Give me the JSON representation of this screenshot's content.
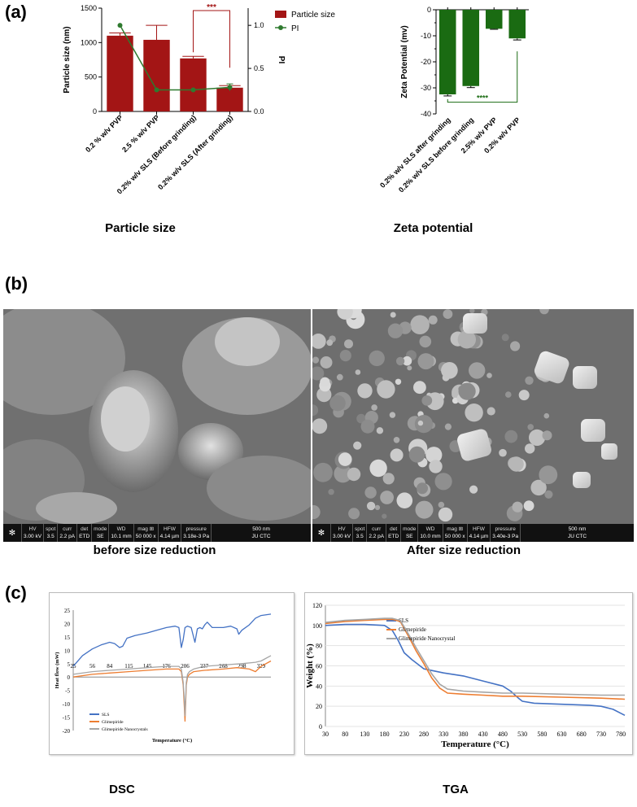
{
  "panels": {
    "a": "(a)",
    "b": "(b)",
    "c": "(c)"
  },
  "colors": {
    "particle_bar": "#a31515",
    "pi_line": "#2f7a2f",
    "zeta_bar": "#1a6b12",
    "sig_line": "#1a6b12",
    "sls": "#4472c4",
    "glimepiride": "#ed7d31",
    "nanocrystal": "#a5a5a5"
  },
  "captions": {
    "particle": "Particle size",
    "zeta": "Zeta potential",
    "sem_before": "before size reduction",
    "sem_after": "After size reduction",
    "dsc": "DSC",
    "tga": "TGA"
  },
  "sem": {
    "before": {
      "hv": "3.00 kV",
      "spot": "3.5",
      "curr": "2.2 pA",
      "det": "ETD",
      "mode": "SE",
      "wd": "10.1 mm",
      "mag": "50 000 x",
      "hfw": "4.14 µm",
      "pressure": "3.18e-3 Pa",
      "scale": "500 nm",
      "lab": "JU CTC"
    },
    "after": {
      "hv": "3.00 kV",
      "spot": "3.5",
      "curr": "2.2 pA",
      "det": "ETD",
      "mode": "SE",
      "wd": "10.0 mm",
      "mag": "50 000 x",
      "hfw": "4.14 µm",
      "pressure": "3.40e-3 Pa",
      "scale": "500 nm",
      "lab": "JU CTC"
    },
    "field_labels": {
      "hv": "HV",
      "spot": "spot",
      "curr": "curr",
      "det": "det",
      "mode": "mode",
      "wd": "WD",
      "mag": "mag ⊞",
      "hfw": "HFW",
      "pressure": "pressure"
    }
  },
  "chart_data": [
    {
      "type": "bar",
      "id": "particle",
      "categories": [
        "0.2 % w/v PVP",
        "2.5 % w/v PVP",
        "0.2% w/v SLS (Before grinding)",
        "0.2% w/v SLS (After grinding)"
      ],
      "series": [
        {
          "name": "Particle size",
          "values": [
            1100,
            1040,
            770,
            345
          ],
          "errors": [
            40,
            210,
            30,
            30
          ]
        },
        {
          "name": "PI",
          "type": "line",
          "axis": "right",
          "values": [
            1.0,
            0.25,
            0.25,
            0.28
          ],
          "errors": [
            0,
            0,
            0,
            0.04
          ]
        }
      ],
      "ylabel": "Particle size (nm)",
      "y2label": "PI",
      "ylim": [
        0,
        1500
      ],
      "yticks": [
        0,
        500,
        1000,
        1500
      ],
      "y2lim": [
        0,
        1.2
      ],
      "y2ticks": [
        "0.0",
        "0.5",
        "1.0"
      ],
      "annotation": "***",
      "legend": "top-right"
    },
    {
      "type": "bar",
      "id": "zeta",
      "categories": [
        "0.2% w/v SLS after grinding",
        "0.2% w/v SLS before grinding",
        "2.5% w/v PVP",
        "0.2% w/v PVP"
      ],
      "values": [
        -32.5,
        -29.3,
        -7.3,
        -11
      ],
      "errors": [
        0.6,
        0.6,
        0.2,
        0.6
      ],
      "ylabel": "Zeta Potential (mv)",
      "ylim": [
        -40,
        0
      ],
      "yticks": [
        0,
        -5,
        -10,
        -15,
        -20,
        -25,
        -30,
        -35,
        -40
      ],
      "annotation": "****"
    },
    {
      "type": "line",
      "id": "dsc",
      "xlabel": "Temperature (°C)",
      "ylabel": "Heat flow (mW)",
      "xticks": [
        25,
        56,
        84,
        115,
        145,
        176,
        206,
        237,
        268,
        298,
        329
      ],
      "xlim": [
        25,
        345
      ],
      "ylim": [
        -20,
        25
      ],
      "yticks": [
        25,
        20,
        15,
        10,
        5,
        0,
        -5,
        -10,
        -15,
        -20
      ],
      "legend": "bottom-left",
      "series": [
        {
          "name": "SLS",
          "x": [
            25,
            40,
            56,
            70,
            84,
            92,
            100,
            105,
            112,
            125,
            145,
            160,
            176,
            190,
            196,
            200,
            203,
            206,
            210,
            216,
            222,
            226,
            230,
            234,
            238,
            242,
            250,
            268,
            280,
            290,
            293,
            298,
            310,
            320,
            329,
            345
          ],
          "y": [
            4,
            8,
            10.5,
            12,
            13,
            12.5,
            11,
            11.5,
            14.5,
            15.5,
            16.5,
            17.5,
            18.5,
            19,
            18.5,
            11,
            14,
            18.5,
            19,
            18.5,
            13,
            18,
            18.5,
            18,
            19.5,
            20.5,
            18.5,
            18.5,
            19,
            18,
            16,
            17.5,
            19.5,
            22,
            23,
            23.5
          ]
        },
        {
          "name": "Glimepiride",
          "x": [
            25,
            56,
            84,
            115,
            145,
            176,
            196,
            200,
            203,
            205,
            206,
            207,
            208,
            210,
            213,
            220,
            237,
            268,
            290,
            310,
            320,
            329,
            345
          ],
          "y": [
            0,
            1,
            1.5,
            2,
            2.5,
            3,
            3,
            2,
            -3,
            -12,
            -16.5,
            -10,
            -3,
            0,
            1,
            2,
            2.5,
            3,
            3.5,
            3,
            2,
            4,
            6
          ]
        },
        {
          "name": "Glimepiride Nanocrystals",
          "x": [
            25,
            56,
            84,
            115,
            145,
            176,
            196,
            200,
            203,
            205,
            206,
            207,
            208,
            210,
            213,
            220,
            237,
            268,
            298,
            320,
            329,
            345
          ],
          "y": [
            1,
            2,
            2.5,
            3,
            3.5,
            4,
            4,
            3,
            -2,
            -9,
            -14.5,
            -8,
            -2,
            1,
            2,
            3,
            4,
            4.5,
            5,
            5.5,
            6,
            8
          ]
        }
      ]
    },
    {
      "type": "line",
      "id": "tga",
      "xlabel": "Temperature (°C)",
      "ylabel": "Weight (%)",
      "xticks": [
        30,
        80,
        130,
        180,
        230,
        280,
        330,
        380,
        430,
        480,
        530,
        580,
        630,
        680,
        730,
        780
      ],
      "xlim": [
        30,
        790
      ],
      "ylim": [
        0,
        120
      ],
      "yticks": [
        0,
        20,
        40,
        60,
        80,
        100,
        120
      ],
      "legend": "top-left",
      "series": [
        {
          "name": "SLS",
          "x": [
            30,
            80,
            130,
            180,
            200,
            215,
            230,
            250,
            280,
            330,
            380,
            430,
            480,
            500,
            520,
            530,
            560,
            630,
            700,
            730,
            760,
            790
          ],
          "y": [
            100,
            101,
            101,
            100,
            95,
            85,
            73,
            66,
            57,
            53,
            50,
            45,
            40,
            35,
            28,
            25,
            23,
            22,
            21,
            20,
            17,
            11
          ]
        },
        {
          "name": "Glimepiride",
          "x": [
            30,
            80,
            130,
            180,
            200,
            220,
            240,
            260,
            280,
            300,
            320,
            340,
            380,
            430,
            480,
            530,
            630,
            730,
            790
          ],
          "y": [
            102,
            104,
            105,
            106,
            106,
            104,
            90,
            75,
            62,
            48,
            38,
            33,
            32,
            31,
            30,
            30,
            29,
            28,
            27
          ]
        },
        {
          "name": "Glimepiride Nanocrystal",
          "x": [
            30,
            80,
            130,
            180,
            200,
            220,
            240,
            260,
            280,
            300,
            320,
            340,
            380,
            430,
            480,
            530,
            630,
            730,
            790
          ],
          "y": [
            103,
            105,
            106,
            107,
            107,
            105,
            92,
            78,
            65,
            52,
            42,
            37,
            35,
            34,
            33,
            33,
            32,
            31,
            31
          ]
        }
      ]
    }
  ]
}
